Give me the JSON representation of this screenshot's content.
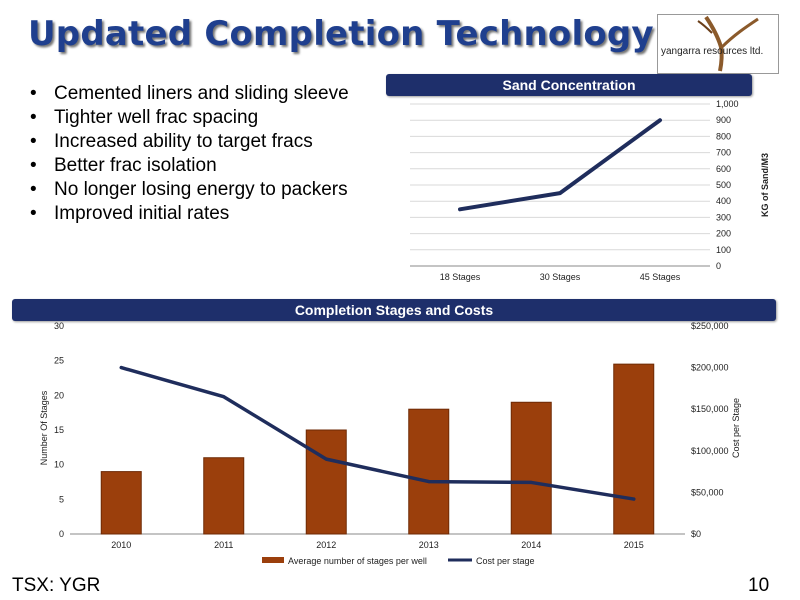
{
  "slide": {
    "title": "Updated Completion Technology",
    "logo_text": "yangarra resources ltd.",
    "bullets": [
      "Cemented liners and sliding sleeve",
      "Tighter well frac spacing",
      "Increased ability to target fracs",
      "Better frac isolation",
      "No longer losing energy to packers",
      "Improved initial rates"
    ],
    "bullet_symbol": "•",
    "footer_left": "TSX: YGR",
    "page_number": "10",
    "colors": {
      "title": "#1f3f8e",
      "banner": "#1e2f6b",
      "line": "#1f2d5c",
      "bar": "#9b3f0c"
    }
  },
  "chart_data": [
    {
      "type": "line",
      "title": "Sand Concentration",
      "categories": [
        "18 Stages",
        "30 Stages",
        "45 Stages"
      ],
      "series": [
        {
          "values": [
            350,
            450,
            900
          ]
        }
      ],
      "ylabel": "KG of Sand/M3",
      "ylim": [
        0,
        1000
      ],
      "yticks": [
        "0",
        "100",
        "200",
        "300",
        "400",
        "500",
        "600",
        "700",
        "800",
        "900",
        "1,000"
      ],
      "y_axis_side": "right",
      "grid": true
    },
    {
      "type": "bar",
      "title": "Completion Stages and Costs",
      "categories": [
        "2010",
        "2011",
        "2012",
        "2013",
        "2014",
        "2015"
      ],
      "series": [
        {
          "name": "Average number of stages per well",
          "type": "bar",
          "axis": "left",
          "values": [
            9,
            11,
            15,
            18,
            19,
            24.5
          ]
        },
        {
          "name": "Cost per stage",
          "type": "line",
          "axis": "right",
          "values": [
            200000,
            165000,
            90000,
            63000,
            62000,
            42000
          ]
        }
      ],
      "ylabel": "Number Of Stages",
      "ylim": [
        0,
        30
      ],
      "yticks": [
        "0",
        "5",
        "10",
        "15",
        "20",
        "25",
        "30"
      ],
      "y2label": "Cost per Stage",
      "y2lim": [
        0,
        250000
      ],
      "y2ticks": [
        "$0",
        "$50,000",
        "$100,000",
        "$150,000",
        "$200,000",
        "$250,000"
      ],
      "legend": "bottom",
      "grid": false
    }
  ]
}
